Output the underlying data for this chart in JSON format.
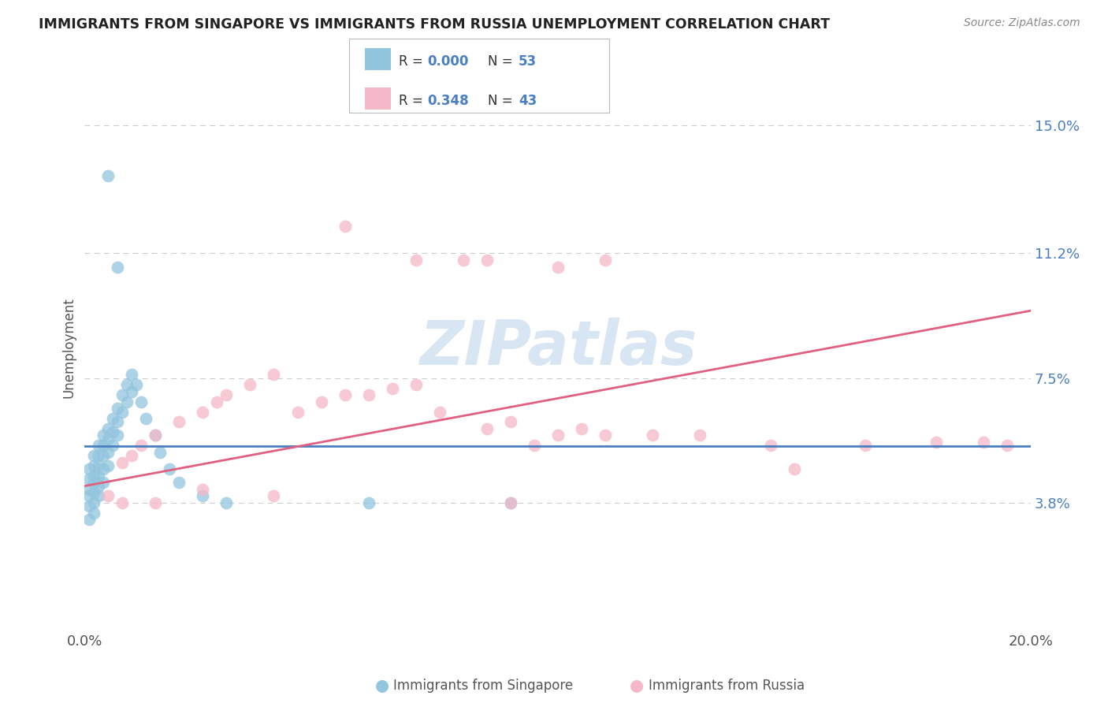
{
  "title": "IMMIGRANTS FROM SINGAPORE VS IMMIGRANTS FROM RUSSIA UNEMPLOYMENT CORRELATION CHART",
  "source": "Source: ZipAtlas.com",
  "ylabel": "Unemployment",
  "yticks": [
    0.038,
    0.075,
    0.112,
    0.15
  ],
  "ytick_labels": [
    "3.8%",
    "7.5%",
    "11.2%",
    "15.0%"
  ],
  "xlim": [
    0.0,
    0.2
  ],
  "ylim": [
    0.0,
    0.168
  ],
  "singapore_color": "#92c5de",
  "russia_color": "#f4b8c8",
  "singapore_line_color": "#4a7fc1",
  "russia_line_color": "#e06080",
  "watermark": "ZIPatlas",
  "sg_R": "0.000",
  "sg_N": "53",
  "ru_R": "0.348",
  "ru_N": "43",
  "sg_x": [
    0.005,
    0.007,
    0.001,
    0.001,
    0.001,
    0.001,
    0.001,
    0.001,
    0.002,
    0.002,
    0.002,
    0.002,
    0.002,
    0.002,
    0.002,
    0.003,
    0.003,
    0.003,
    0.003,
    0.003,
    0.003,
    0.004,
    0.004,
    0.004,
    0.004,
    0.004,
    0.005,
    0.005,
    0.005,
    0.005,
    0.006,
    0.006,
    0.006,
    0.007,
    0.007,
    0.007,
    0.008,
    0.008,
    0.009,
    0.009,
    0.01,
    0.01,
    0.011,
    0.012,
    0.013,
    0.015,
    0.016,
    0.018,
    0.02,
    0.025,
    0.03,
    0.06,
    0.09
  ],
  "sg_y": [
    0.135,
    0.108,
    0.048,
    0.045,
    0.042,
    0.04,
    0.037,
    0.033,
    0.052,
    0.049,
    0.046,
    0.044,
    0.041,
    0.038,
    0.035,
    0.055,
    0.052,
    0.049,
    0.046,
    0.043,
    0.04,
    0.058,
    0.055,
    0.052,
    0.048,
    0.044,
    0.06,
    0.057,
    0.053,
    0.049,
    0.063,
    0.059,
    0.055,
    0.066,
    0.062,
    0.058,
    0.07,
    0.065,
    0.073,
    0.068,
    0.076,
    0.071,
    0.073,
    0.068,
    0.063,
    0.058,
    0.053,
    0.048,
    0.044,
    0.04,
    0.038,
    0.038,
    0.038
  ],
  "ru_x": [
    0.055,
    0.07,
    0.08,
    0.085,
    0.1,
    0.11,
    0.005,
    0.008,
    0.01,
    0.012,
    0.015,
    0.02,
    0.025,
    0.028,
    0.03,
    0.035,
    0.04,
    0.045,
    0.05,
    0.055,
    0.06,
    0.065,
    0.07,
    0.075,
    0.085,
    0.09,
    0.095,
    0.1,
    0.105,
    0.11,
    0.12,
    0.13,
    0.145,
    0.15,
    0.165,
    0.18,
    0.19,
    0.195,
    0.008,
    0.015,
    0.025,
    0.04,
    0.09
  ],
  "ru_y": [
    0.12,
    0.11,
    0.11,
    0.11,
    0.108,
    0.11,
    0.04,
    0.05,
    0.052,
    0.055,
    0.058,
    0.062,
    0.065,
    0.068,
    0.07,
    0.073,
    0.076,
    0.065,
    0.068,
    0.07,
    0.07,
    0.072,
    0.073,
    0.065,
    0.06,
    0.062,
    0.055,
    0.058,
    0.06,
    0.058,
    0.058,
    0.058,
    0.055,
    0.048,
    0.055,
    0.056,
    0.056,
    0.055,
    0.038,
    0.038,
    0.042,
    0.04,
    0.038
  ]
}
